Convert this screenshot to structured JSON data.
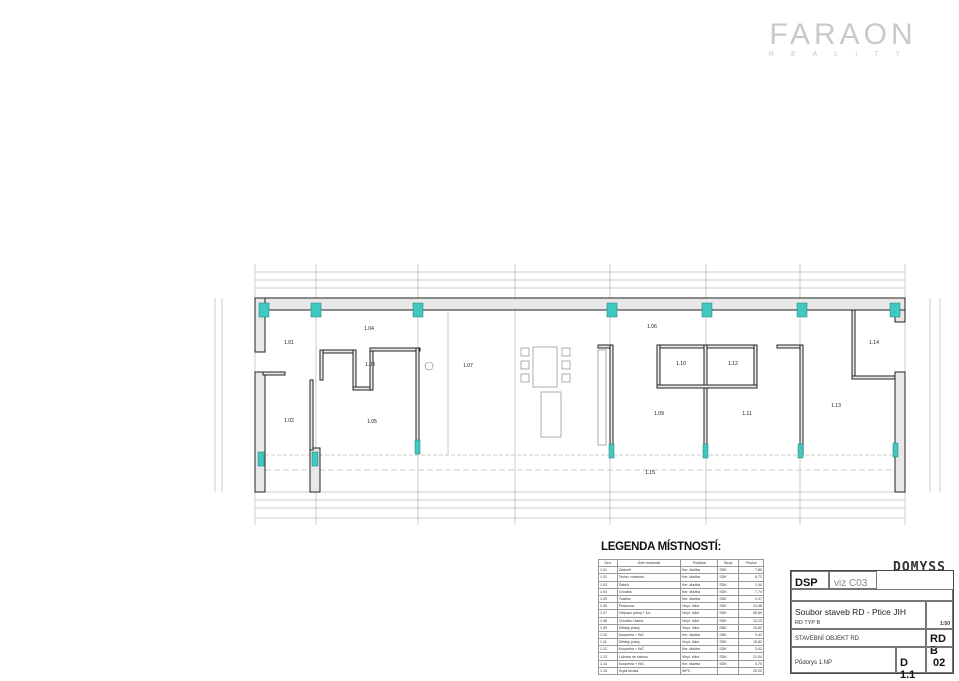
{
  "brand": {
    "name": "FARAON",
    "tagline": "REALITY",
    "color": "#c9c9c9"
  },
  "plan": {
    "accent_color": "#3fc9c0",
    "room_labels": [
      "1.01",
      "1.02",
      "1.03",
      "1.04",
      "1.05",
      "1.06",
      "1.07",
      "1.09",
      "1.10",
      "1.11",
      "1.12",
      "1.13",
      "1.14",
      "1.15"
    ]
  },
  "legend": {
    "title": "LEGENDA MÍSTNOSTÍ:",
    "columns": [
      "Ozn.",
      "Účel místnosti",
      "Podlaha",
      "Strop",
      "Plocha"
    ],
    "rows": [
      {
        "id": "1.01",
        "name": "Zádveří",
        "floor": "Ker. dlažba",
        "ceiling": "SDK",
        "area": "7,80"
      },
      {
        "id": "1.02",
        "name": "Techn. místnost",
        "floor": "Ker. dlažba",
        "ceiling": "SDK",
        "area": "8,72"
      },
      {
        "id": "1.03",
        "name": "Šatník",
        "floor": "Ker. dlažba",
        "ceiling": "SDK",
        "area": "1,50"
      },
      {
        "id": "1.04",
        "name": "Chodba",
        "floor": "Ker. dlažba",
        "ceiling": "SDK",
        "area": "7,74"
      },
      {
        "id": "1.05",
        "name": "Toaleta",
        "floor": "Ker. dlažba",
        "ceiling": "SDK",
        "area": "2,47"
      },
      {
        "id": "1.06",
        "name": "Pracovna",
        "floor": "Vinyl. dílce",
        "ceiling": "SDK",
        "area": "14,48"
      },
      {
        "id": "1.07",
        "name": "Obývací pokoj + k.k.",
        "floor": "Vinyl. dílce",
        "ceiling": "SDK",
        "area": "55,80"
      },
      {
        "id": "1.08",
        "name": "Chodba / šatna",
        "floor": "Vinyl. dílce",
        "ceiling": "SDK",
        "area": "13,13"
      },
      {
        "id": "1.09",
        "name": "Dětský pokoj",
        "floor": "Vinyl. dílce",
        "ceiling": "SDK",
        "area": "15,82"
      },
      {
        "id": "1.10",
        "name": "Koupelna + WC",
        "floor": "Ker. dlažba",
        "ceiling": "SDK",
        "area": "3,42"
      },
      {
        "id": "1.11",
        "name": "Dětský pokoj",
        "floor": "Vinyl. dílce",
        "ceiling": "SDK",
        "area": "15,82"
      },
      {
        "id": "1.12",
        "name": "Koupelna + WC",
        "floor": "Ker. dlažba",
        "ceiling": "SDK",
        "area": "3,42"
      },
      {
        "id": "1.13",
        "name": "Ložnice se šatnou",
        "floor": "Vinyl. dílce",
        "ceiling": "SDK",
        "area": "21,04"
      },
      {
        "id": "1.14",
        "name": "Koupelna + WC",
        "floor": "Ker. dlažba",
        "ceiling": "SDK",
        "area": "4,70"
      },
      {
        "id": "1.15",
        "name": "Krytá terasa",
        "floor": "WPC",
        "ceiling": "",
        "area": "25,00"
      }
    ]
  },
  "title_block": {
    "company_logo": "DOMYSS",
    "stage": "DSP",
    "reference": "viz C03",
    "project": "Soubor staveb RD - Ptice JIH",
    "type": "RD TYP B",
    "object": "STAVEBNÍ OBJEKT RD",
    "object_code": "RD B",
    "scale": "1:50",
    "drawing": "Půdorys 1.NP",
    "drawing_no": "D 1.1",
    "sheet": "02"
  }
}
